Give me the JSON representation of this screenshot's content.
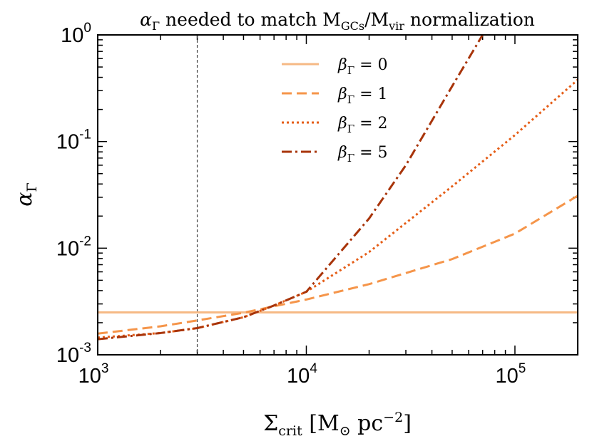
{
  "chart_data": {
    "type": "line",
    "title": "αΓ needed to match MGCs/Mvir normalization",
    "title_parts": {
      "alpha": "α",
      "alpha_sub": "Γ",
      "mid": " needed to match M",
      "gcs_sub": "GCs",
      "slash": "/M",
      "vir_sub": "vir",
      "end": " normalization"
    },
    "xlabel": "Σcrit [M⊙ pc−2]",
    "xlabel_parts": {
      "sigma": "Σ",
      "sub": "crit",
      "rest": " [M",
      "sun": "⊙",
      "pc": " pc",
      "exp": "−2",
      "close": "]"
    },
    "ylabel": "αΓ",
    "ylabel_parts": {
      "alpha": "α",
      "sub": "Γ"
    },
    "xscale": "log",
    "yscale": "log",
    "xlim": [
      1000,
      200000
    ],
    "ylim": [
      0.001,
      1
    ],
    "x_ticks": [
      {
        "base": "10",
        "exp": "3",
        "value": 1000
      },
      {
        "base": "10",
        "exp": "4",
        "value": 10000
      },
      {
        "base": "10",
        "exp": "5",
        "value": 100000
      }
    ],
    "y_ticks": [
      {
        "base": "10",
        "exp": "-3",
        "value": 0.001
      },
      {
        "base": "10",
        "exp": "-2",
        "value": 0.01
      },
      {
        "base": "10",
        "exp": "-1",
        "value": 0.1
      },
      {
        "base": "10",
        "exp": "0",
        "value": 1
      }
    ],
    "reference_line": {
      "x": 3000,
      "style": "dashed",
      "color": "#444444"
    },
    "legend_position": "top-center",
    "series": [
      {
        "name": "βΓ = 0",
        "label_beta": "β",
        "label_sub": "Γ",
        "label_eq": " = 0",
        "color": "#f6b985",
        "dash": "solid",
        "x": [
          1000,
          2000,
          5000,
          10000,
          50000,
          100000,
          200000
        ],
        "y": [
          0.0025,
          0.0025,
          0.0025,
          0.0025,
          0.0025,
          0.0025,
          0.0025
        ]
      },
      {
        "name": "βΓ = 1",
        "label_beta": "β",
        "label_sub": "Γ",
        "label_eq": " = 1",
        "color": "#f5954a",
        "dash": "dashed",
        "x": [
          1000,
          2000,
          3000,
          5000,
          7000,
          10000,
          20000,
          50000,
          100000,
          200000
        ],
        "y": [
          0.00158,
          0.00185,
          0.0021,
          0.00248,
          0.00285,
          0.0033,
          0.0046,
          0.0079,
          0.0137,
          0.031
        ]
      },
      {
        "name": "βΓ = 2",
        "label_beta": "β",
        "label_sub": "Γ",
        "label_eq": " = 2",
        "color": "#e55d16",
        "dash": "dotted",
        "x": [
          1000,
          2000,
          3000,
          5000,
          7000,
          10000,
          20000,
          50000,
          100000,
          200000
        ],
        "y": [
          0.00145,
          0.0016,
          0.00178,
          0.00225,
          0.0029,
          0.0039,
          0.0092,
          0.038,
          0.115,
          0.38
        ]
      },
      {
        "name": "βΓ = 5",
        "label_beta": "β",
        "label_sub": "Γ",
        "label_eq": " = 5",
        "color": "#a8340a",
        "dash": "dashdot",
        "x": [
          1000,
          2000,
          3000,
          5000,
          7000,
          10000,
          20000,
          30000,
          50000,
          70000
        ],
        "y": [
          0.0014,
          0.0016,
          0.00178,
          0.00225,
          0.0029,
          0.0039,
          0.019,
          0.06,
          0.33,
          1.0
        ]
      }
    ]
  }
}
